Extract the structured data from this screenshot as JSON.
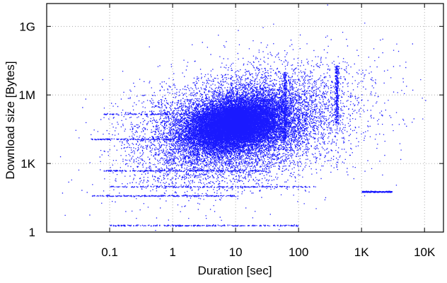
{
  "chart_data": {
    "type": "scatter",
    "xlabel": "Duration [sec]",
    "ylabel": "Download size [Bytes]",
    "x_scale": "log",
    "y_scale": "log",
    "xlim": [
      0.01,
      20000
    ],
    "ylim": [
      1,
      10000000000
    ],
    "x_ticks": [
      {
        "value": 0.1,
        "label": "0.1"
      },
      {
        "value": 1,
        "label": "1"
      },
      {
        "value": 10,
        "label": "10"
      },
      {
        "value": 100,
        "label": "100"
      },
      {
        "value": 1000,
        "label": "1K"
      },
      {
        "value": 10000,
        "label": "10K"
      }
    ],
    "y_ticks": [
      {
        "value": 1,
        "label": "1"
      },
      {
        "value": 1000,
        "label": "1K"
      },
      {
        "value": 1000000,
        "label": "1M"
      },
      {
        "value": 1000000000,
        "label": "1G"
      }
    ],
    "grid": true,
    "grid_style": "dotted",
    "point_color": "#1a1aff",
    "density_regions": [
      {
        "x_range": [
          1,
          100
        ],
        "y_range": [
          2000,
          1500000
        ],
        "density": "very high"
      },
      {
        "x_range": [
          0.1,
          1000
        ],
        "y_range": [
          50,
          30000000
        ],
        "density": "high"
      },
      {
        "x_range": [
          0.02,
          15000
        ],
        "y_range": [
          3,
          800000000
        ],
        "density": "sparse"
      }
    ],
    "horizontal_streaks": [
      {
        "y": 500,
        "x_range": [
          0.08,
          30
        ]
      },
      {
        "y": 100,
        "x_range": [
          0.1,
          200
        ]
      },
      {
        "y": 12000,
        "x_range": [
          0.05,
          20
        ]
      },
      {
        "y": 150000,
        "x_range": [
          0.08,
          50
        ]
      },
      {
        "y": 2,
        "x_range": [
          0.1,
          100
        ]
      },
      {
        "y": 40,
        "x_range": [
          0.05,
          10
        ]
      },
      {
        "y": 60,
        "x_range": [
          1000,
          3000
        ]
      }
    ],
    "vertical_streaks": [
      {
        "x": 60,
        "y_range": [
          10000,
          10000000
        ]
      },
      {
        "x": 400,
        "y_range": [
          50000,
          20000000
        ]
      }
    ]
  }
}
